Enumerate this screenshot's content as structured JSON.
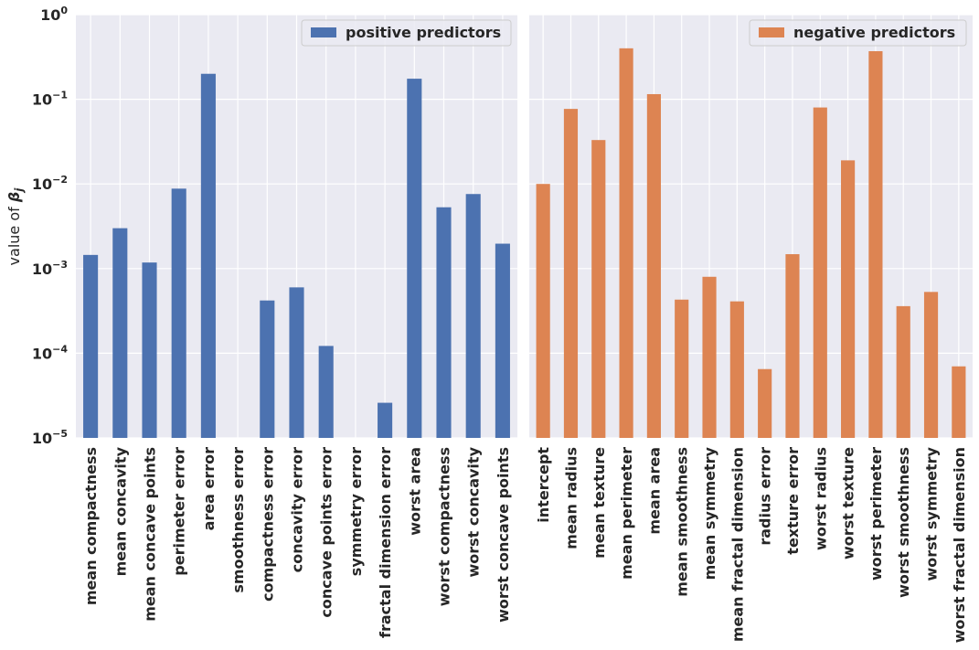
{
  "chart_data": {
    "type": "bar",
    "yscale": "log",
    "ylim": [
      1e-05,
      1
    ],
    "ylabel": "value of β_j",
    "ylabel_prefix": "value of ",
    "ylabel_symbol": "β",
    "ylabel_subscript": "j",
    "y_tick_labels": [
      {
        "base": "10",
        "exp": "−5"
      },
      {
        "base": "10",
        "exp": "−4"
      },
      {
        "base": "10",
        "exp": "−3"
      },
      {
        "base": "10",
        "exp": "−2"
      },
      {
        "base": "10",
        "exp": "−1"
      },
      {
        "base": "10",
        "exp": "0"
      }
    ],
    "grid": true,
    "legend_position": "top-right",
    "panels": [
      {
        "series_name": "positive predictors",
        "color": "#4c72b0",
        "categories": [
          "mean compactness",
          "mean concavity",
          "mean concave points",
          "perimeter error",
          "area error",
          "smoothness error",
          "compactness error",
          "concavity error",
          "concave points error",
          "symmetry error",
          "fractal dimension error",
          "worst area",
          "worst compactness",
          "worst concavity",
          "worst concave points"
        ],
        "values": [
          0.00145,
          0.003,
          0.00118,
          0.0088,
          0.2,
          0,
          0.00042,
          0.0006,
          0.000122,
          0,
          2.6e-05,
          0.175,
          0.0053,
          0.0076,
          0.00197
        ]
      },
      {
        "series_name": "negative predictors",
        "color": "#dd8452",
        "categories": [
          "intercept",
          "mean radius",
          "mean texture",
          "mean perimeter",
          "mean area",
          "mean smoothness",
          "mean symmetry",
          "mean fractal dimension",
          "radius error",
          "texture error",
          "worst radius",
          "worst texture",
          "worst perimeter",
          "worst smoothness",
          "worst symmetry",
          "worst fractal dimension"
        ],
        "values": [
          0.01,
          0.077,
          0.033,
          0.4,
          0.115,
          0.00043,
          0.0008,
          0.00041,
          6.5e-05,
          0.00148,
          0.08,
          0.019,
          0.37,
          0.00036,
          0.00053,
          7e-05
        ]
      }
    ]
  }
}
